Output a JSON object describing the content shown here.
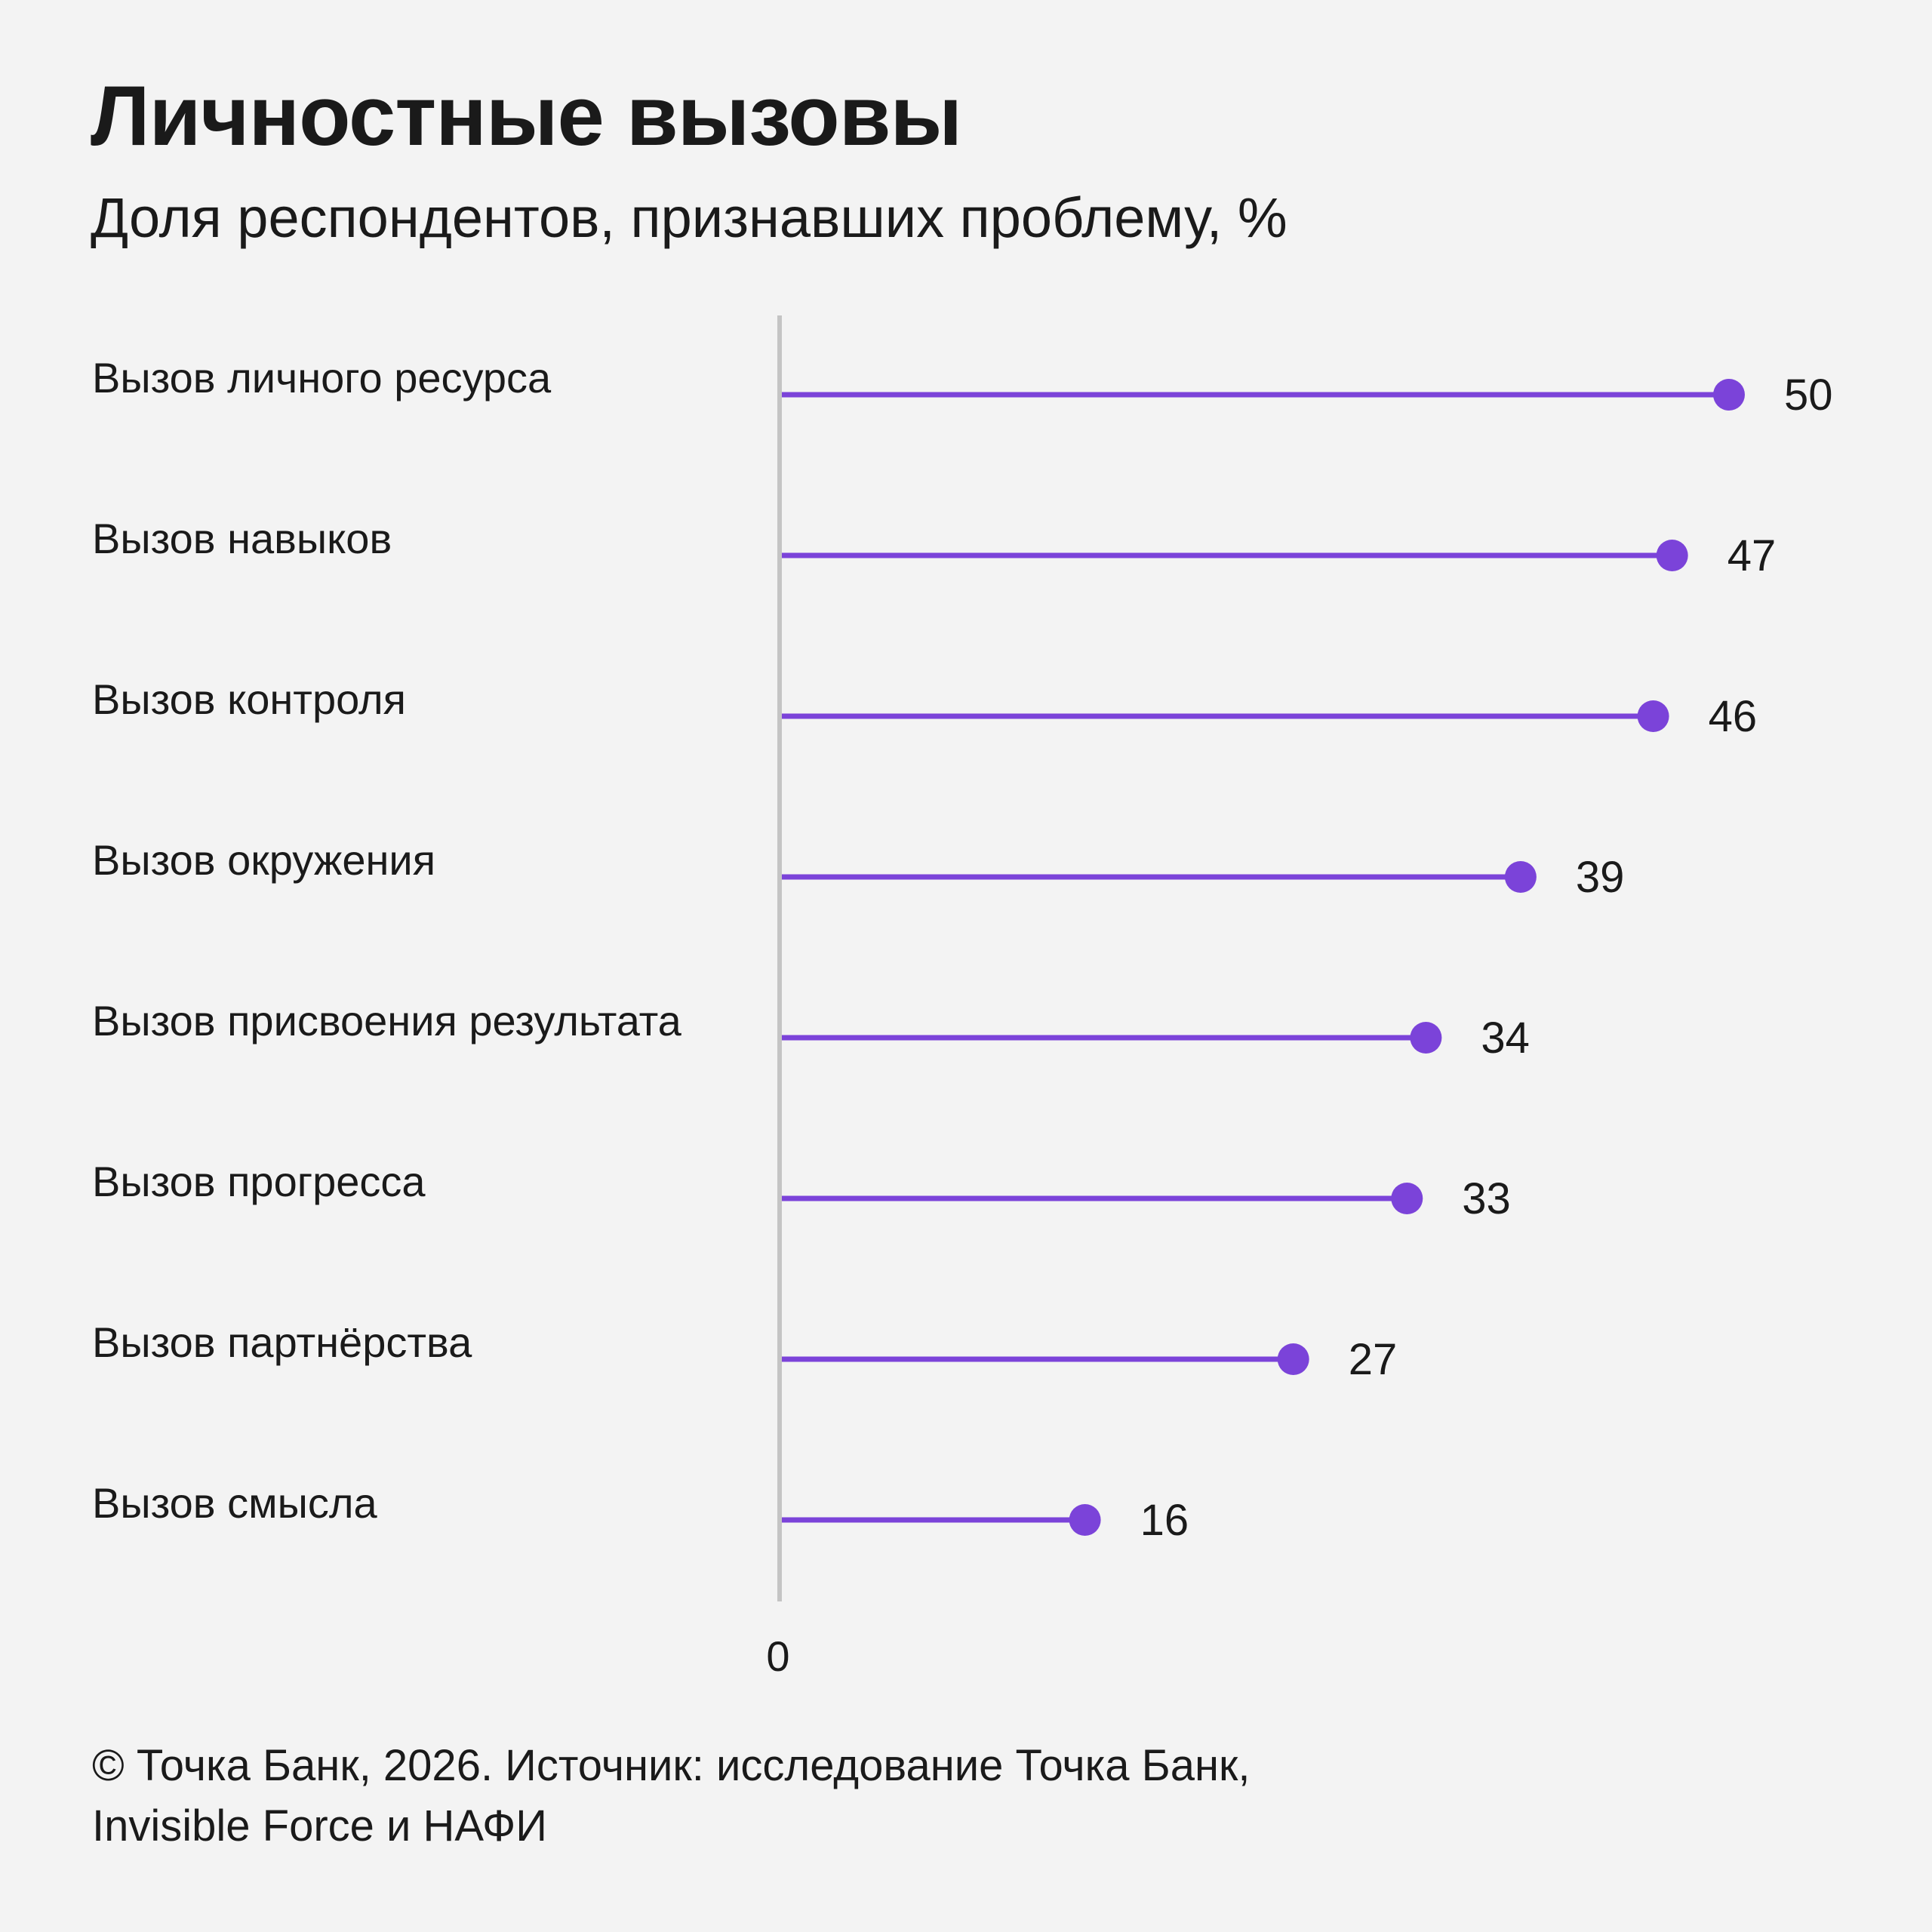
{
  "header": {
    "title": "Личностные вызовы",
    "subtitle": "Доля респондентов, признавших проблему, %"
  },
  "chart_data": {
    "type": "bar",
    "style": "lollipop",
    "orientation": "horizontal",
    "categories": [
      "Вызов личного ресурса",
      "Вызов навыков",
      "Вызов контроля",
      "Вызов окружения",
      "Вызов присвоения результата",
      "Вызов прогресса",
      "Вызов партнёрства",
      "Вызов смысла"
    ],
    "values": [
      50,
      47,
      46,
      39,
      34,
      33,
      27,
      16
    ],
    "value_labels": [
      "50",
      "47",
      "46",
      "39",
      "34",
      "33",
      "27",
      "16"
    ],
    "x_tick_labels": [
      "0"
    ],
    "xlim": [
      0,
      50
    ],
    "grid": false,
    "legend": "none",
    "colors": {
      "series": "#7b43d9",
      "axis": "#c4c4c4",
      "background": "#f3f3f3",
      "text": "#1a1a1a"
    }
  },
  "footer": {
    "line1": "© Точка Банк, 2026. Источник: исследование Точка Банк,",
    "line2": "Invisible Force и НАФИ"
  }
}
